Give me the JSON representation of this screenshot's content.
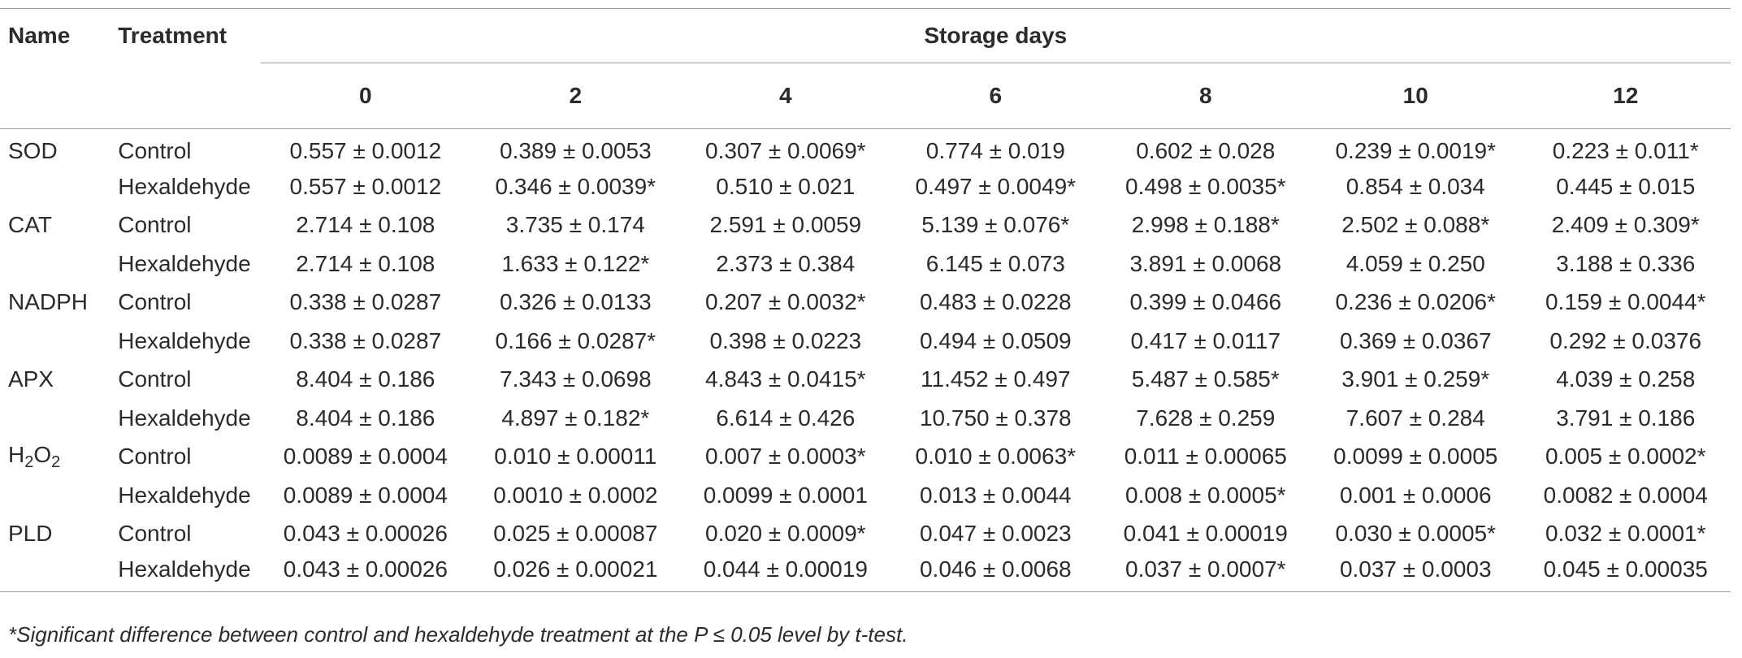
{
  "header": {
    "name": "Name",
    "treatment": "Treatment",
    "storage_days": "Storage days",
    "days": [
      "0",
      "2",
      "4",
      "6",
      "8",
      "10",
      "12"
    ]
  },
  "rows": [
    {
      "name": "SOD",
      "treatment": "Control",
      "values": [
        "0.557 ± 0.0012",
        "0.389 ± 0.0053",
        "0.307 ± 0.0069*",
        "0.774 ± 0.019",
        "0.602 ± 0.028",
        "0.239 ± 0.0019*",
        "0.223 ± 0.011*"
      ]
    },
    {
      "name": "",
      "treatment": "Hexaldehyde",
      "values": [
        "0.557 ± 0.0012",
        "0.346 ± 0.0039*",
        "0.510 ± 0.021",
        "0.497 ± 0.0049*",
        "0.498 ± 0.0035*",
        "0.854 ± 0.034",
        "0.445 ± 0.015"
      ]
    },
    {
      "name": "CAT",
      "treatment": "Control",
      "values": [
        "2.714 ± 0.108",
        "3.735 ± 0.174",
        "2.591 ± 0.0059",
        "5.139 ± 0.076*",
        "2.998 ± 0.188*",
        "2.502 ± 0.088*",
        "2.409 ± 0.309*"
      ]
    },
    {
      "name": "",
      "treatment": "Hexaldehyde",
      "values": [
        "2.714 ± 0.108",
        "1.633 ± 0.122*",
        "2.373 ± 0.384",
        "6.145 ± 0.073",
        "3.891 ± 0.0068",
        "4.059 ± 0.250",
        "3.188 ± 0.336"
      ]
    },
    {
      "name": "NADPH",
      "treatment": "Control",
      "values": [
        "0.338 ± 0.0287",
        "0.326 ± 0.0133",
        "0.207 ± 0.0032*",
        "0.483 ± 0.0228",
        "0.399 ± 0.0466",
        "0.236 ± 0.0206*",
        "0.159 ± 0.0044*"
      ]
    },
    {
      "name": "",
      "treatment": "Hexaldehyde",
      "values": [
        "0.338 ± 0.0287",
        "0.166 ± 0.0287*",
        "0.398 ± 0.0223",
        "0.494 ± 0.0509",
        "0.417 ± 0.0117",
        "0.369 ± 0.0367",
        "0.292 ± 0.0376"
      ]
    },
    {
      "name": "APX",
      "treatment": "Control",
      "values": [
        "8.404 ± 0.186",
        "7.343 ± 0.0698",
        "4.843 ± 0.0415*",
        "11.452 ± 0.497",
        "5.487 ± 0.585*",
        "3.901 ± 0.259*",
        "4.039 ± 0.258"
      ]
    },
    {
      "name": "",
      "treatment": "Hexaldehyde",
      "values": [
        "8.404 ± 0.186",
        "4.897 ± 0.182*",
        "6.614 ± 0.426",
        "10.750 ± 0.378",
        "7.628 ± 0.259",
        "7.607 ± 0.284",
        "3.791 ± 0.186"
      ]
    },
    {
      "name": "H",
      "name_sub1": "2",
      "name_mid": "O",
      "name_sub2": "2",
      "treatment": "Control",
      "values": [
        "0.0089 ± 0.0004",
        "0.010 ± 0.00011",
        "0.007 ± 0.0003*",
        "0.010 ± 0.0063*",
        "0.011 ± 0.00065",
        "0.0099 ± 0.0005",
        "0.005 ± 0.0002*"
      ]
    },
    {
      "name": "",
      "treatment": "Hexaldehyde",
      "values": [
        "0.0089 ± 0.0004",
        "0.0010 ± 0.0002",
        "0.0099 ± 0.0001",
        "0.013 ± 0.0044",
        "0.008 ± 0.0005*",
        "0.001 ± 0.0006",
        "0.0082 ± 0.0004"
      ]
    },
    {
      "name": "PLD",
      "treatment": "Control",
      "values": [
        "0.043 ± 0.00026",
        "0.025 ± 0.00087",
        "0.020 ± 0.0009*",
        "0.047 ± 0.0023",
        "0.041 ± 0.00019",
        "0.030 ± 0.0005*",
        "0.032 ± 0.0001*"
      ]
    },
    {
      "name": "",
      "treatment": "Hexaldehyde",
      "values": [
        "0.043 ± 0.00026",
        "0.026 ± 0.00021",
        "0.044 ± 0.00019",
        "0.046 ± 0.0068",
        "0.037 ± 0.0007*",
        "0.037 ± 0.0003",
        "0.045 ± 0.00035"
      ]
    }
  ],
  "footnote": "*Significant difference between control and hexaldehyde treatment at the P ≤ 0.05 level by t-test."
}
